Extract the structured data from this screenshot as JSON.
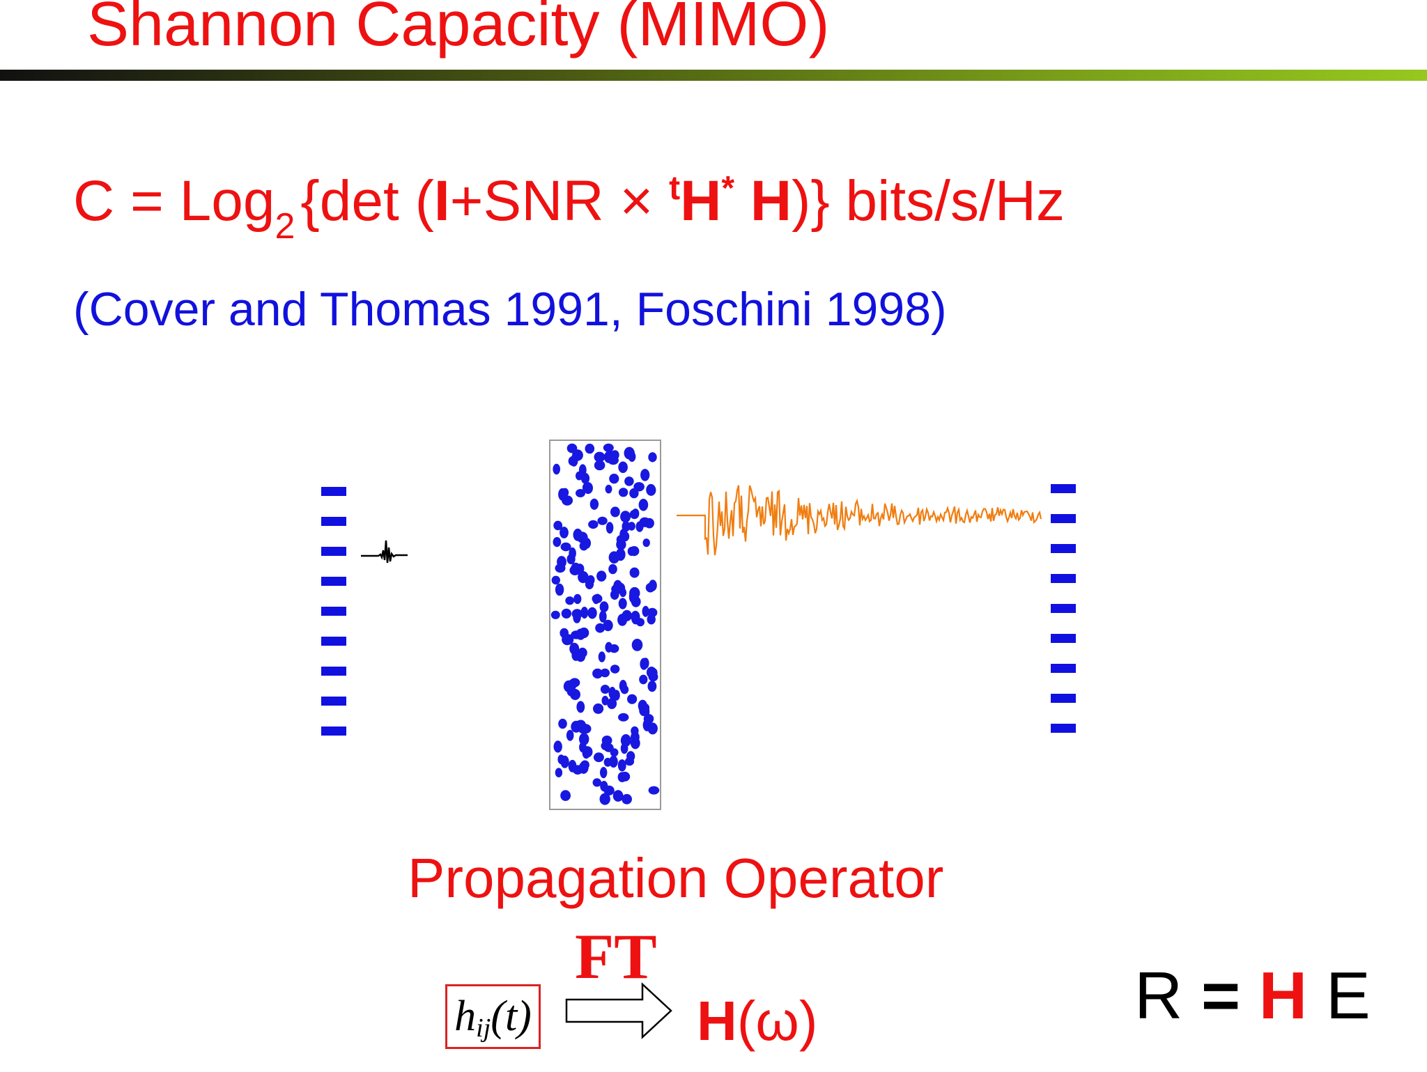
{
  "slide": {
    "title": "Shannon Capacity (MIMO)",
    "formula": {
      "lhs": "C = Log",
      "log_base": "2",
      "open": "{det (",
      "identity": "I",
      "plus_snr": "+SNR ",
      "times": "×",
      "transpose": "t",
      "h_conj": "H",
      "conj_mark": "*",
      "h": "H",
      "close": ")} bits/s/Hz"
    },
    "citation": "(Cover and Thomas 1991, Foschini 1998)",
    "propagation_label": "Propagation Operator",
    "ft_label": "FT",
    "impulse": {
      "h": "h",
      "sub": "ij",
      "arg": "(t)"
    },
    "transfer": {
      "h": "H",
      "arg": "(ω)"
    },
    "relation": {
      "r": "R",
      "eq": "=",
      "h": "H",
      "e": "E"
    }
  },
  "colors": {
    "title_red": "#ee1111",
    "citation_blue": "#1111dd",
    "array_blue": "#1010e0",
    "scatterer_blue": "#1818e0",
    "signal_orange": "#f07d10"
  },
  "icons": {
    "transmit_array": "antenna-array-icon",
    "receive_array": "antenna-array-icon",
    "scattering_medium": "random-scatterers",
    "pulse": "short-pulse-waveform",
    "reverberated_signal": "coda-waveform",
    "ft_arrow": "hollow-right-arrow-icon"
  }
}
